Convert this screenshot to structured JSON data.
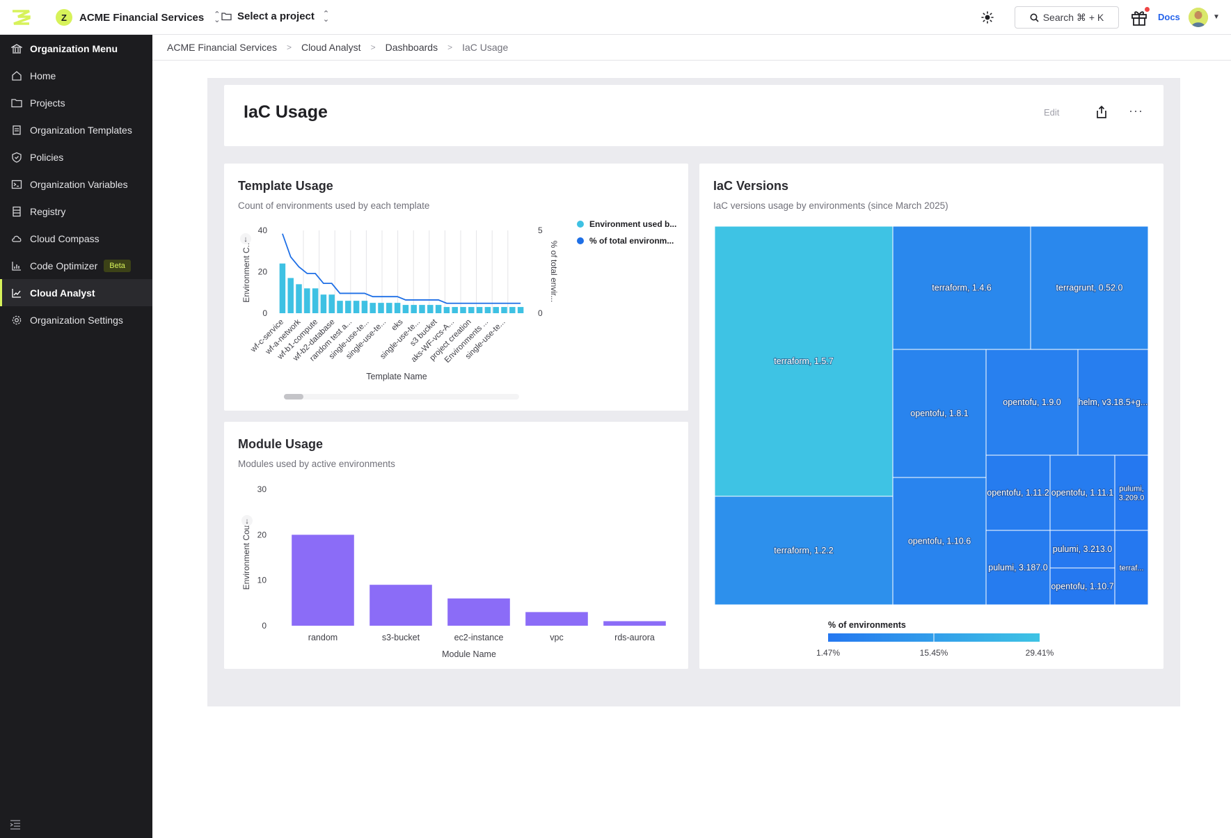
{
  "topbar": {
    "org_name": "ACME Financial Services",
    "org_initial": "Z",
    "project_label": "Select a project",
    "search_label": "Search ⌘ + K",
    "docs_label": "Docs"
  },
  "sidebar": {
    "items": [
      {
        "label": "Organization Menu",
        "icon": "bank-icon"
      },
      {
        "label": "Home",
        "icon": "home-icon"
      },
      {
        "label": "Projects",
        "icon": "folder-icon"
      },
      {
        "label": "Organization Templates",
        "icon": "template-icon"
      },
      {
        "label": "Policies",
        "icon": "shield-icon"
      },
      {
        "label": "Organization Variables",
        "icon": "terminal-icon"
      },
      {
        "label": "Registry",
        "icon": "registry-icon"
      },
      {
        "label": "Cloud Compass",
        "icon": "cloud-icon"
      },
      {
        "label": "Code Optimizer",
        "icon": "chart-icon",
        "badge": "Beta"
      },
      {
        "label": "Cloud Analyst",
        "icon": "trend-icon",
        "active": true
      },
      {
        "label": "Organization Settings",
        "icon": "gear-icon"
      }
    ]
  },
  "breadcrumb": [
    "ACME Financial Services",
    "Cloud Analyst",
    "Dashboards",
    "IaC Usage"
  ],
  "dashboard": {
    "title": "IaC Usage",
    "edit_label": "Edit",
    "more_label": "···"
  },
  "template_usage": {
    "title": "Template Usage",
    "subtitle": "Count of environments used by each template"
  },
  "module_usage": {
    "title": "Module Usage",
    "subtitle": "Modules used by active environments"
  },
  "iac_versions": {
    "title": "IaC Versions",
    "subtitle": "IaC versions usage by environments (since March 2025)"
  },
  "chart_data": [
    {
      "type": "bar",
      "id": "template-usage",
      "title": "Template Usage",
      "xlabel": "Template Name",
      "ylabel": "Environment C...",
      "y2label": "% of total envir...",
      "ylim": [
        0,
        40
      ],
      "y2lim": [
        0,
        5
      ],
      "yticks": [
        0,
        20,
        40
      ],
      "y2ticks": [
        0,
        5
      ],
      "tick_labels": [
        "wf-c-service",
        "wf-a-network",
        "wf-b1-compute",
        "wf-b2-database",
        "random test a...",
        "single-use-te...",
        "single-use-te...",
        "eks",
        "single-use-te...",
        "s3 bucket",
        "aks-WF-vcs-A...",
        "project creation",
        "Environments ...",
        "single-use-te..."
      ],
      "series": [
        {
          "name": "Environment used b...",
          "color": "#3ec1e3",
          "values": [
            24,
            17,
            14,
            12,
            12,
            9,
            9,
            6,
            6,
            6,
            6,
            5,
            5,
            5,
            5,
            4,
            4,
            4,
            4,
            4,
            3,
            3,
            3,
            3,
            3,
            3,
            3,
            3,
            3,
            3
          ]
        },
        {
          "name": "% of total environm...",
          "color": "#1e6fe6",
          "values": [
            4.8,
            3.4,
            2.8,
            2.4,
            2.4,
            1.8,
            1.8,
            1.2,
            1.2,
            1.2,
            1.2,
            1.0,
            1.0,
            1.0,
            1.0,
            0.8,
            0.8,
            0.8,
            0.8,
            0.8,
            0.6,
            0.6,
            0.6,
            0.6,
            0.6,
            0.6,
            0.6,
            0.6,
            0.6,
            0.6
          ]
        }
      ]
    },
    {
      "type": "bar",
      "id": "module-usage",
      "title": "Module Usage",
      "xlabel": "Module Name",
      "ylabel": "Environment Count",
      "ylim": [
        0,
        30
      ],
      "yticks": [
        0,
        10,
        20,
        30
      ],
      "color": "#8b6cf7",
      "categories": [
        "random",
        "s3-bucket",
        "ec2-instance",
        "vpc",
        "rds-aurora"
      ],
      "values": [
        20,
        9,
        6,
        3,
        1
      ]
    },
    {
      "type": "treemap",
      "id": "iac-versions",
      "title": "IaC Versions",
      "legend_title": "% of environments",
      "legend_ticks": [
        "1.47%",
        "15.45%",
        "29.41%"
      ],
      "cells": [
        {
          "label": "terraform, 1.5.7",
          "value": 29.41
        },
        {
          "label": "terraform, 1.2.2",
          "value": 10.3
        },
        {
          "label": "terraform, 1.4.6",
          "value": 7.35
        },
        {
          "label": "terragrunt, 0.52.0",
          "value": 7.35
        },
        {
          "label": "opentofu, 1.8.1",
          "value": 5.88
        },
        {
          "label": "opentofu, 1.9.0",
          "value": 4.41
        },
        {
          "label": "helm, v3.18.5+g...",
          "value": 3.68
        },
        {
          "label": "opentofu, 1.10.6",
          "value": 5.88
        },
        {
          "label": "opentofu, 1.11.2",
          "value": 2.94
        },
        {
          "label": "opentofu, 1.11.1",
          "value": 2.94
        },
        {
          "label": "pulumi, 3.209.0",
          "value": 1.47
        },
        {
          "label": "pulumi, 3.187.0",
          "value": 2.94
        },
        {
          "label": "pulumi, 3.213.0",
          "value": 1.47
        },
        {
          "label": "opentofu, 1.10.7",
          "value": 1.47
        },
        {
          "label": "terraf...",
          "value": 1.47
        }
      ]
    }
  ]
}
